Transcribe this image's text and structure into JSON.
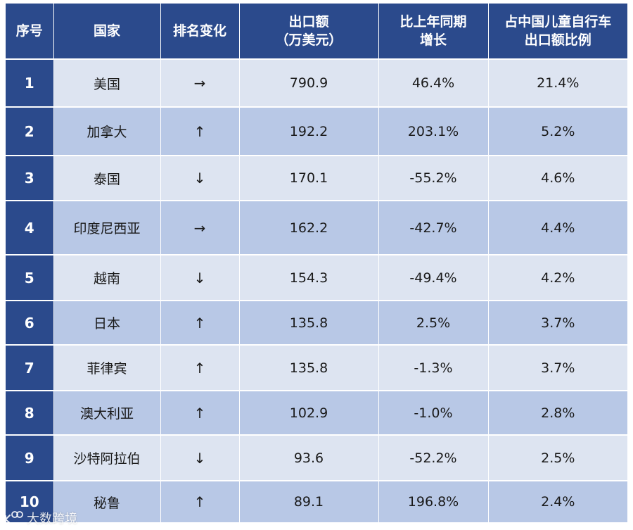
{
  "table": {
    "headers": [
      [
        "序号"
      ],
      [
        "国家"
      ],
      [
        "排名变化"
      ],
      [
        "出口额",
        "（万美元）"
      ],
      [
        "比上年同期",
        "增长"
      ],
      [
        "占中国儿童自行车",
        "出口额比例"
      ]
    ],
    "rows": [
      {
        "rank": "1",
        "country": "美国",
        "change": "→",
        "change_icon": "arrow-right-icon",
        "export": "790.9",
        "growth": "46.4%",
        "share": "21.4%"
      },
      {
        "rank": "2",
        "country": "加拿大",
        "change": "↑",
        "change_icon": "arrow-up-icon",
        "export": "192.2",
        "growth": "203.1%",
        "share": "5.2%"
      },
      {
        "rank": "3",
        "country": "泰国",
        "change": "↓",
        "change_icon": "arrow-down-icon",
        "export": "170.1",
        "growth": "-55.2%",
        "share": "4.6%"
      },
      {
        "rank": "4",
        "country": "印度尼西亚",
        "change": "→",
        "change_icon": "arrow-right-icon",
        "export": "162.2",
        "growth": "-42.7%",
        "share": "4.4%"
      },
      {
        "rank": "5",
        "country": "越南",
        "change": "↓",
        "change_icon": "arrow-down-icon",
        "export": "154.3",
        "growth": "-49.4%",
        "share": "4.2%"
      },
      {
        "rank": "6",
        "country": "日本",
        "change": "↑",
        "change_icon": "arrow-up-icon",
        "export": "135.8",
        "growth": "2.5%",
        "share": "3.7%"
      },
      {
        "rank": "7",
        "country": "菲律宾",
        "change": "↑",
        "change_icon": "arrow-up-icon",
        "export": "135.8",
        "growth": "-1.3%",
        "share": "3.7%"
      },
      {
        "rank": "8",
        "country": "澳大利亚",
        "change": "↑",
        "change_icon": "arrow-up-icon",
        "export": "102.9",
        "growth": "-1.0%",
        "share": "2.8%"
      },
      {
        "rank": "9",
        "country": "沙特阿拉伯",
        "change": "↓",
        "change_icon": "arrow-down-icon",
        "export": "93.6",
        "growth": "-52.2%",
        "share": "2.5%"
      },
      {
        "rank": "10",
        "country": "秘鲁",
        "change": "↑",
        "change_icon": "arrow-up-icon",
        "export": "89.1",
        "growth": "196.8%",
        "share": "2.4%"
      }
    ]
  },
  "colors": {
    "header_bg": "#2b4a8c",
    "row_light": "#dde4f1",
    "row_dark": "#b8c8e6"
  },
  "watermark": {
    "text": "大数跨境",
    "icon": "watermark-logo-icon"
  }
}
